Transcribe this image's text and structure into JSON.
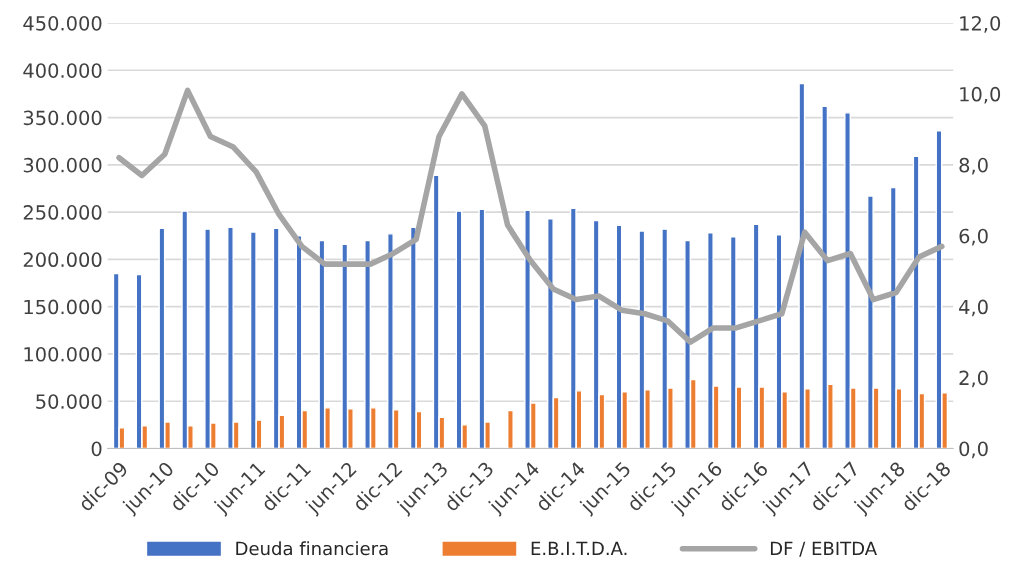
{
  "chart_data": {
    "type": "bar",
    "categories": [
      "dic-09",
      null,
      "jun-10",
      null,
      "dic-10",
      null,
      "jun-11",
      null,
      "dic-11",
      null,
      "jun-12",
      null,
      "dic-12",
      null,
      "jun-13",
      null,
      "dic-13",
      null,
      "jun-14",
      null,
      "dic-14",
      null,
      "jun-15",
      null,
      "dic-15",
      null,
      "jun-16",
      null,
      "dic-16",
      null,
      "jun-17",
      null,
      "dic-17",
      null,
      "jun-18",
      null,
      "dic-18"
    ],
    "series": [
      {
        "name": "Deuda financiera",
        "color": "#4472c4",
        "values": [
          185000,
          184000,
          233000,
          251000,
          232000,
          234000,
          229000,
          233000,
          225000,
          220000,
          216000,
          220000,
          227000,
          234000,
          289000,
          251000,
          253000,
          null,
          252000,
          243000,
          254000,
          241000,
          236000,
          230000,
          232000,
          220000,
          228000,
          224000,
          237000,
          226000,
          386000,
          362000,
          355000,
          267000,
          276000,
          309000,
          336000
        ]
      },
      {
        "name": "E.B.I.T.D.A.",
        "color": "#ed7d31",
        "values": [
          22000,
          24000,
          28000,
          24000,
          27000,
          28000,
          30000,
          35000,
          40000,
          43000,
          42000,
          43000,
          41000,
          39000,
          33000,
          25000,
          28000,
          40000,
          48000,
          54000,
          61000,
          57000,
          60000,
          62000,
          64000,
          73000,
          66000,
          65000,
          65000,
          60000,
          63000,
          68000,
          64000,
          64000,
          63000,
          58000,
          59000
        ]
      },
      {
        "name": "DF / EBITDA",
        "type": "line",
        "axis": "y2",
        "color": "#a5a5a5",
        "values": [
          8.2,
          7.7,
          8.3,
          10.1,
          8.8,
          8.5,
          7.8,
          6.6,
          5.7,
          5.2,
          5.2,
          5.2,
          5.5,
          5.9,
          8.8,
          10.0,
          9.1,
          6.3,
          5.3,
          4.5,
          4.2,
          4.3,
          3.9,
          3.8,
          3.6,
          3.0,
          3.4,
          3.4,
          3.6,
          3.8,
          6.1,
          5.3,
          5.5,
          4.2,
          4.4,
          5.4,
          5.7
        ]
      }
    ],
    "ylim": [
      0,
      450000
    ],
    "yticks": [
      0,
      {
        "value": 50000,
        "label": "50.000"
      },
      {
        "value": 100000,
        "label": "100.000"
      },
      {
        "value": 150000,
        "label": "150.000"
      },
      {
        "value": 200000,
        "label": "200.000"
      },
      {
        "value": 250000,
        "label": "250.000"
      },
      {
        "value": 300000,
        "label": "300.000"
      },
      {
        "value": 350000,
        "label": "350.000"
      },
      {
        "value": 400000,
        "label": "400.000"
      },
      {
        "value": 450000,
        "label": "450.000"
      }
    ],
    "y2lim": [
      0,
      12
    ],
    "y2ticks": [
      {
        "value": 0,
        "label": "0,0"
      },
      {
        "value": 2,
        "label": "2,0"
      },
      {
        "value": 4,
        "label": "4,0"
      },
      {
        "value": 6,
        "label": "6,0"
      },
      {
        "value": 8,
        "label": "8,0"
      },
      {
        "value": 10,
        "label": "10,0"
      },
      {
        "value": 12,
        "label": "12,0"
      }
    ],
    "grid": "y",
    "legend": "bottom",
    "marker": "none",
    "line_style": "solid"
  }
}
